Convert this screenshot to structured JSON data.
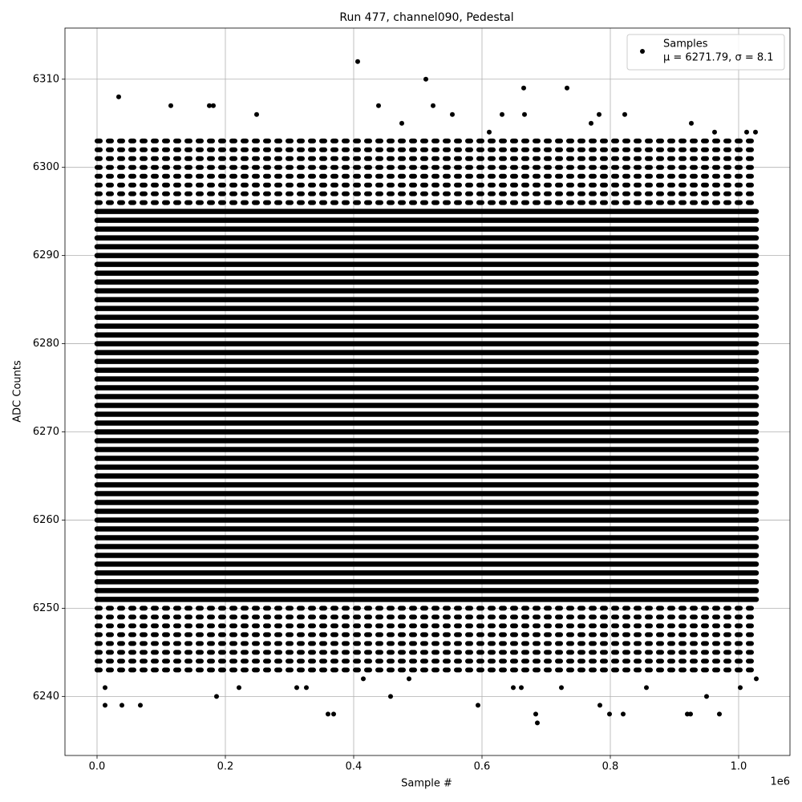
{
  "chart_data": {
    "type": "scatter",
    "title": "Run 477, channel090, Pedestal",
    "x_label": "Sample #",
    "y_label": "ADC Counts",
    "x_offset_label": "1e6",
    "xlim": [
      -50000,
      1080000
    ],
    "ylim": [
      6233.3,
      6315.8
    ],
    "xticks": [
      {
        "value": 0,
        "label": "0.0"
      },
      {
        "value": 200000,
        "label": "0.2"
      },
      {
        "value": 400000,
        "label": "0.4"
      },
      {
        "value": 600000,
        "label": "0.6"
      },
      {
        "value": 800000,
        "label": "0.8"
      },
      {
        "value": 1000000,
        "label": "1.0"
      }
    ],
    "yticks": [
      6240,
      6250,
      6260,
      6270,
      6280,
      6290,
      6300,
      6310
    ],
    "grid": true,
    "legend_position": "upper right",
    "legend_note": "μ = 6271.79, σ = 8.1",
    "series": [
      {
        "name": "Samples",
        "color": "#000000",
        "x": [
          0,
          12500,
          12500,
          33750,
          38750,
          406250,
          512500,
          523750,
          666250,
          683750,
          665000,
          732500,
          686250,
          360000,
          368750,
          457500,
          593750,
          798750,
          820000,
          925000,
          920000,
          970000,
          67500,
          115000,
          181250,
          175000,
          248750,
          438750,
          475000,
          553750,
          611250,
          631250,
          782500,
          822500,
          926250,
          962500,
          1026250,
          1012500,
          770000,
          648750,
          723750,
          783750,
          1027500,
          1002500,
          950000,
          856250,
          186250,
          221250,
          311250,
          326250,
          415000,
          486250,
          661250
        ],
        "values": [
          6243,
          6241,
          6239,
          6308,
          6239,
          6312,
          6310,
          6307,
          6306,
          6238,
          6309,
          6309,
          6237,
          6238,
          6238,
          6240,
          6239,
          6238,
          6238,
          6238,
          6238,
          6238,
          6239,
          6307,
          6307,
          6307,
          6306,
          6307,
          6305,
          6306,
          6304,
          6306,
          6306,
          6306,
          6305,
          6304,
          6304,
          6304,
          6305,
          6241,
          6241,
          6239,
          6242,
          6241,
          6240,
          6241,
          6240,
          6241,
          6241,
          6241,
          6242,
          6242,
          6241
        ]
      }
    ],
    "bands": {
      "x": [
        0,
        1027500
      ],
      "dense_y": [
        6251,
        6252,
        6253,
        6254,
        6255,
        6256,
        6257,
        6258,
        6259,
        6260,
        6261,
        6262,
        6263,
        6264,
        6265,
        6266,
        6267,
        6268,
        6269,
        6270,
        6271,
        6272,
        6273,
        6274,
        6275,
        6276,
        6277,
        6278,
        6279,
        6280,
        6281,
        6282,
        6283,
        6284,
        6285,
        6286,
        6287,
        6288,
        6289,
        6290,
        6291,
        6292,
        6293,
        6294,
        6295
      ],
      "sparse_y": [
        6243,
        6244,
        6245,
        6246,
        6247,
        6248,
        6249,
        6250,
        6296,
        6297,
        6298,
        6299,
        6300,
        6301,
        6302,
        6303
      ]
    }
  }
}
